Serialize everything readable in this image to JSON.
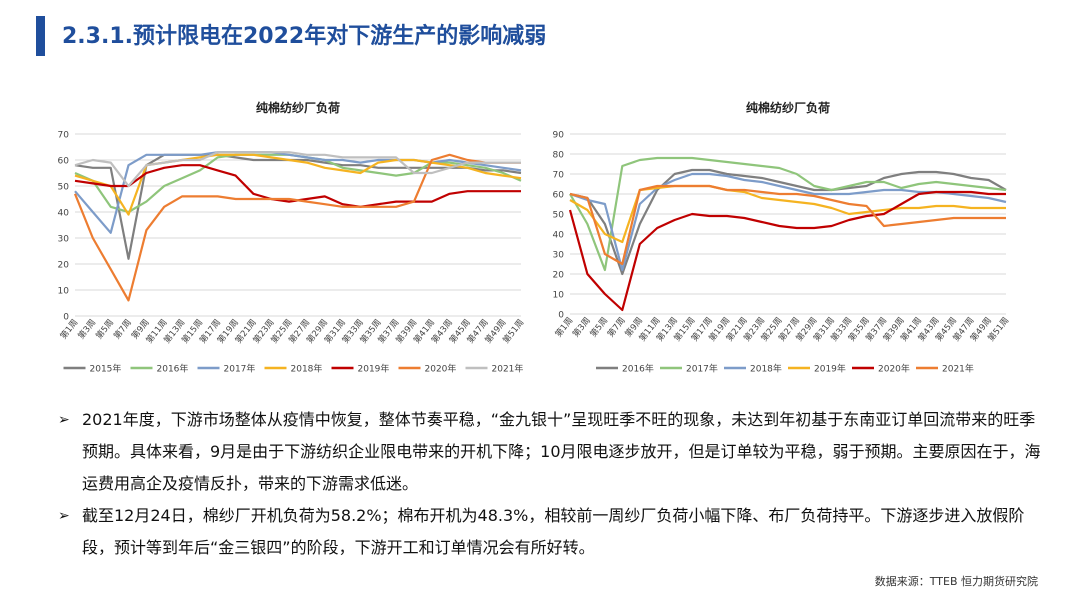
{
  "page_title": "2.3.1.预计限电在2022年对下游生产的影响减弱",
  "bullets": [
    "2021年度，下游市场整体从疫情中恢复，整体节奏平稳，“金九银十”呈现旺季不旺的现象，未达到年初基于东南亚订单回流带来的旺季预期。具体来看，9月是由于下游纺织企业限电带来的开机下降；10月限电逐步放开，但是订单较为平稳，弱于预期。主要原因在于，海运费用高企及疫情反扑，带来的下游需求低迷。",
    "截至12月24日，棉纱厂开机负荷为58.2%；棉布开机为48.3%，相较前一周纱厂负荷小幅下降、布厂负荷持平。下游逐步进入放假阶段，预计等到年后“金三银四”的阶段，下游开工和订单情况会有所好转。"
  ],
  "source": "数据来源：TTEB 恒力期货研究院",
  "chart_data": [
    {
      "type": "line",
      "title": "纯棉纺纱厂负荷",
      "xlabel": "",
      "ylabel": "",
      "ylim": [
        0,
        70
      ],
      "yticks": [
        0,
        10,
        20,
        30,
        40,
        50,
        60,
        70
      ],
      "x": [
        "第1周",
        "第3周",
        "第5周",
        "第7周",
        "第9周",
        "第11周",
        "第13周",
        "第15周",
        "第17周",
        "第19周",
        "第21周",
        "第23周",
        "第25周",
        "第27周",
        "第29周",
        "第31周",
        "第33周",
        "第35周",
        "第37周",
        "第39周",
        "第41周",
        "第43周",
        "第45周",
        "第47周",
        "第49周",
        "第51周"
      ],
      "grid": true,
      "legend": "bottom",
      "series": [
        {
          "name": "2015年",
          "color": "#7f7f7f",
          "values": [
            58,
            57,
            57,
            22,
            58,
            62,
            62,
            62,
            62,
            61,
            60,
            60,
            60,
            60,
            59,
            58,
            58,
            57,
            57,
            57,
            57,
            57,
            57,
            56,
            56,
            55
          ]
        },
        {
          "name": "2016年",
          "color": "#8fc57b",
          "values": [
            55,
            52,
            42,
            40,
            44,
            50,
            53,
            56,
            61,
            62,
            62,
            62,
            62,
            61,
            60,
            57,
            56,
            55,
            54,
            55,
            59,
            59,
            58,
            57,
            55,
            52
          ]
        },
        {
          "name": "2017年",
          "color": "#7d9cc9",
          "values": [
            48,
            40,
            32,
            58,
            62,
            62,
            62,
            62,
            63,
            63,
            63,
            63,
            62,
            61,
            60,
            60,
            59,
            60,
            60,
            60,
            59,
            60,
            59,
            58,
            57,
            56
          ]
        },
        {
          "name": "2018年",
          "color": "#f5b321",
          "values": [
            54,
            52,
            50,
            39,
            58,
            59,
            60,
            61,
            62,
            62,
            62,
            61,
            60,
            59,
            57,
            56,
            55,
            59,
            60,
            60,
            59,
            58,
            57,
            55,
            54,
            53
          ]
        },
        {
          "name": "2019年",
          "color": "#c00000",
          "values": [
            52,
            51,
            50,
            50,
            55,
            57,
            58,
            58,
            56,
            54,
            47,
            45,
            44,
            45,
            46,
            43,
            42,
            43,
            44,
            44,
            44,
            47,
            48,
            48,
            48,
            48
          ]
        },
        {
          "name": "2020年",
          "color": "#ed7d31",
          "values": [
            47,
            30,
            18,
            6,
            33,
            42,
            46,
            46,
            46,
            45,
            45,
            45,
            45,
            44,
            43,
            42,
            42,
            42,
            42,
            44,
            60,
            62,
            60,
            59,
            59,
            59
          ]
        },
        {
          "name": "2021年",
          "color": "#bfbfbf",
          "values": [
            58,
            60,
            59,
            50,
            58,
            59,
            60,
            60,
            63,
            63,
            63,
            63,
            63,
            62,
            62,
            61,
            61,
            61,
            61,
            55,
            55,
            57,
            59,
            59,
            59,
            59
          ]
        }
      ]
    },
    {
      "type": "line",
      "title": "纯棉纺纱厂负荷",
      "xlabel": "",
      "ylabel": "",
      "ylim": [
        0,
        90
      ],
      "yticks": [
        0,
        10,
        20,
        30,
        40,
        50,
        60,
        70,
        80,
        90
      ],
      "x": [
        "第1周",
        "第3周",
        "第5周",
        "第7周",
        "第9周",
        "第11周",
        "第13周",
        "第15周",
        "第17周",
        "第19周",
        "第21周",
        "第23周",
        "第25周",
        "第27周",
        "第29周",
        "第31周",
        "第33周",
        "第35周",
        "第37周",
        "第39周",
        "第41周",
        "第43周",
        "第45周",
        "第47周",
        "第49周",
        "第51周"
      ],
      "grid": true,
      "legend": "bottom",
      "series": [
        {
          "name": "2016年",
          "color": "#7f7f7f",
          "values": [
            60,
            58,
            45,
            20,
            45,
            62,
            70,
            72,
            72,
            70,
            69,
            68,
            66,
            64,
            62,
            62,
            63,
            64,
            68,
            70,
            71,
            71,
            70,
            68,
            67,
            62
          ]
        },
        {
          "name": "2017年",
          "color": "#8fc57b",
          "values": [
            60,
            45,
            22,
            74,
            77,
            78,
            78,
            78,
            77,
            76,
            75,
            74,
            73,
            70,
            64,
            62,
            64,
            66,
            66,
            63,
            65,
            66,
            65,
            64,
            63,
            62
          ]
        },
        {
          "name": "2018年",
          "color": "#7d9cc9",
          "values": [
            60,
            57,
            55,
            22,
            55,
            63,
            67,
            70,
            70,
            69,
            67,
            66,
            64,
            62,
            60,
            60,
            60,
            61,
            62,
            62,
            61,
            61,
            60,
            59,
            58,
            56
          ]
        },
        {
          "name": "2019年",
          "color": "#f5b321",
          "values": [
            57,
            52,
            40,
            36,
            62,
            63,
            64,
            64,
            64,
            62,
            61,
            58,
            57,
            56,
            55,
            53,
            50,
            51,
            52,
            53,
            53,
            54,
            54,
            53,
            53,
            53
          ]
        },
        {
          "name": "2020年",
          "color": "#c00000",
          "values": [
            52,
            20,
            10,
            2,
            35,
            43,
            47,
            50,
            49,
            49,
            48,
            46,
            44,
            43,
            43,
            44,
            47,
            49,
            50,
            55,
            60,
            61,
            61,
            61,
            60,
            60
          ]
        },
        {
          "name": "2021年",
          "color": "#ed7d31",
          "values": [
            60,
            58,
            30,
            25,
            62,
            64,
            64,
            64,
            64,
            62,
            62,
            61,
            60,
            60,
            59,
            57,
            55,
            54,
            44,
            45,
            46,
            47,
            48,
            48,
            48,
            48
          ]
        }
      ]
    }
  ]
}
